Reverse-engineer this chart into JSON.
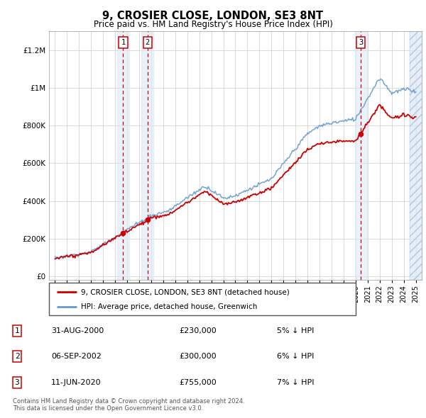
{
  "title": "9, CROSIER CLOSE, LONDON, SE3 8NT",
  "subtitle": "Price paid vs. HM Land Registry's House Price Index (HPI)",
  "ylabel_ticks": [
    0,
    200000,
    400000,
    600000,
    800000,
    1000000,
    1200000
  ],
  "ylabel_labels": [
    "£0",
    "£200K",
    "£400K",
    "£600K",
    "£800K",
    "£1M",
    "£1.2M"
  ],
  "xlim": [
    1994.5,
    2025.5
  ],
  "ylim": [
    -20000,
    1300000
  ],
  "sales": [
    {
      "label": "1",
      "date": "31-AUG-2000",
      "price": 230000,
      "year": 2000.67,
      "pct": "5%"
    },
    {
      "label": "2",
      "date": "06-SEP-2002",
      "price": 300000,
      "year": 2002.69,
      "pct": "6%"
    },
    {
      "label": "3",
      "date": "11-JUN-2020",
      "price": 755000,
      "year": 2020.44,
      "pct": "7%"
    }
  ],
  "legend_line1": "9, CROSIER CLOSE, LONDON, SE3 8NT (detached house)",
  "legend_line2": "HPI: Average price, detached house, Greenwich",
  "footer": "Contains HM Land Registry data © Crown copyright and database right 2024.\nThis data is licensed under the Open Government Licence v3.0.",
  "red_color": "#cc0000",
  "blue_color": "#6699cc",
  "shade_color": "#dce8f5",
  "table_rows": [
    [
      "1",
      "31-AUG-2000",
      "£230,000",
      "5% ↓ HPI"
    ],
    [
      "2",
      "06-SEP-2002",
      "£300,000",
      "6% ↓ HPI"
    ],
    [
      "3",
      "11-JUN-2020",
      "£755,000",
      "7% ↓ HPI"
    ]
  ]
}
